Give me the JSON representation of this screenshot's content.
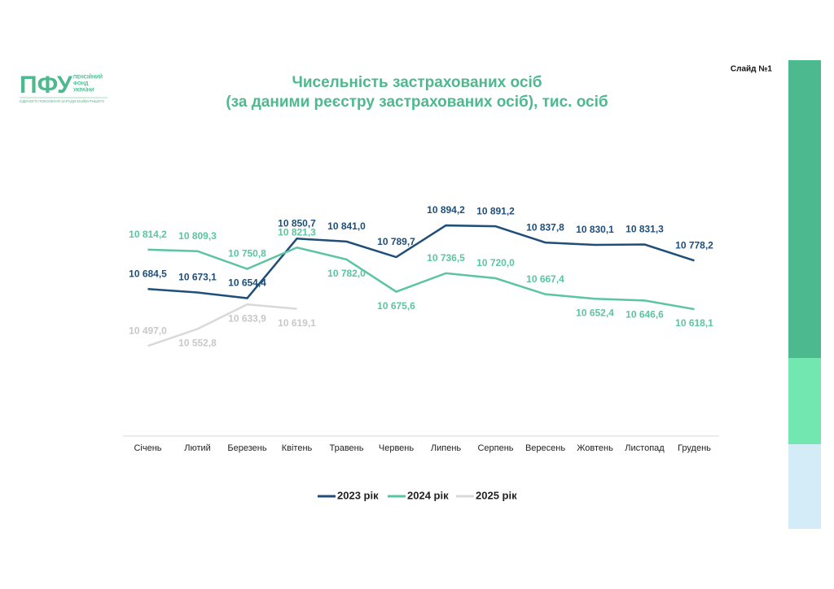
{
  "slide": "Слайд №1",
  "logo": {
    "mark": "ПФУ",
    "name": [
      "ПЕНСІЙНИЙ",
      "ФОНД",
      "УКРАЇНИ"
    ],
    "motto": "ЄДИНОГО ПОКОЛІННЯ ЗАРАДИ МАЙБУТНЬОГО"
  },
  "chart_data": {
    "type": "line",
    "title": "Чисельність застрахованих осіб",
    "subtitle": "(за даними реєстру застрахованих осіб), тис. осіб",
    "categories": [
      "Січень",
      "Лютий",
      "Березень",
      "Квітень",
      "Травень",
      "Червень",
      "Липень",
      "Серпень",
      "Вересень",
      "Жовтень",
      "Листопад",
      "Грудень"
    ],
    "ylim": [
      10200,
      11200
    ],
    "legend": "bottom",
    "series": [
      {
        "name": "2023 рік",
        "color": "#1f4e79",
        "values": [
          10684.5,
          10673.1,
          10654.4,
          10850.7,
          10841.0,
          10789.7,
          10894.2,
          10891.2,
          10837.8,
          10830.1,
          10831.3,
          10778.2
        ],
        "value_labels": [
          "10 684,5",
          "10 673,1",
          "10 654,4",
          "10 850,7",
          "10 841,0",
          "10 789,7",
          "10 894,2",
          "10 891,2",
          "10 837,8",
          "10 830,1",
          "10 831,3",
          "10 778,2"
        ]
      },
      {
        "name": "2024 рік",
        "color": "#5bc5a0",
        "values": [
          10814.2,
          10809.3,
          10750.8,
          10821.3,
          10782.0,
          10675.6,
          10736.5,
          10720.0,
          10667.4,
          10652.4,
          10646.6,
          10618.1
        ],
        "value_labels": [
          "10 814,2",
          "10 809,3",
          "10 750,8",
          "10 821,3",
          "10 782,0",
          "10 675,6",
          "10 736,5",
          "10 720,0",
          "10 667,4",
          "10 652,4",
          "10 646,6",
          "10 618,1"
        ]
      },
      {
        "name": "2025 рік",
        "color": "#d9d9d9",
        "values": [
          10497.0,
          10552.8,
          10633.9,
          10619.1,
          null,
          null,
          null,
          null,
          null,
          null,
          null,
          null
        ],
        "value_labels": [
          "10 497,0",
          "10 552,8",
          "10 633,9",
          "10 619,1",
          null,
          null,
          null,
          null,
          null,
          null,
          null,
          null
        ]
      }
    ]
  }
}
